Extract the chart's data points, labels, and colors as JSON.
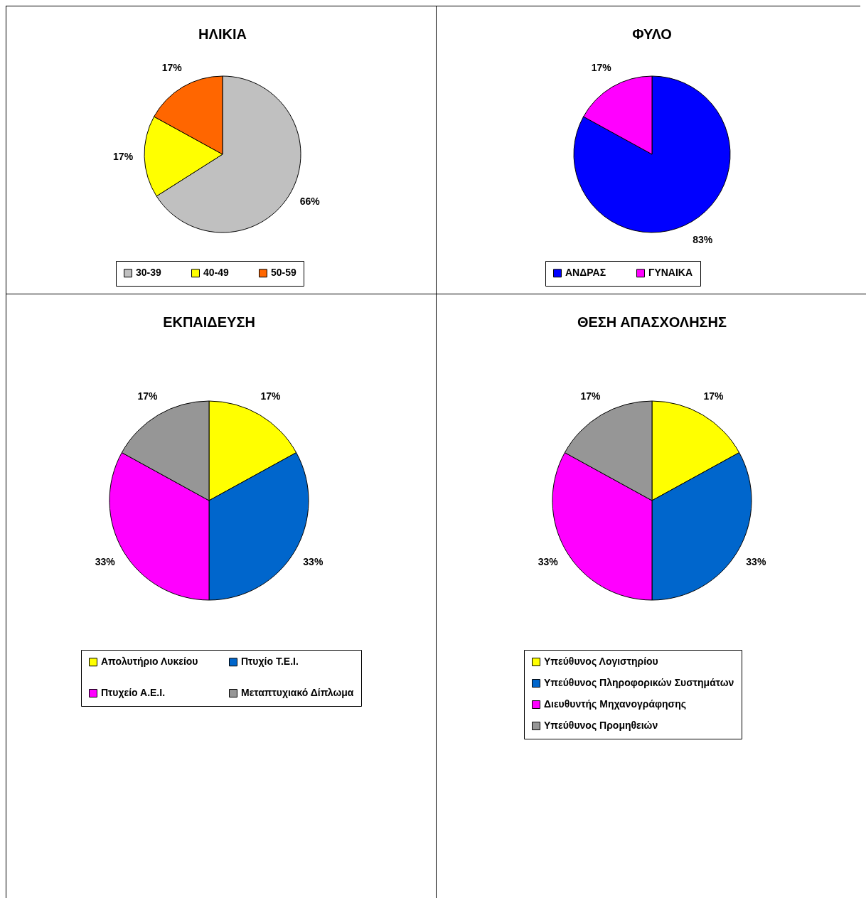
{
  "chart_data": [
    {
      "type": "pie",
      "title": "ΗΛΙΚΙΑ",
      "categories": [
        "30-39",
        "40-49",
        "50-59"
      ],
      "values": [
        66,
        17,
        17
      ],
      "value_labels": [
        "66%",
        "17%",
        "17%"
      ],
      "colors": [
        "#c0c0c0",
        "#ffff00",
        "#ff6600"
      ],
      "legend": "bottom"
    },
    {
      "type": "pie",
      "title": "ΦΥΛΟ",
      "categories": [
        "ΑΝΔΡΑΣ",
        "ΓΥΝΑΙΚΑ"
      ],
      "values": [
        83,
        17
      ],
      "value_labels": [
        "83%",
        "17%"
      ],
      "colors": [
        "#0000ff",
        "#ff00ff"
      ],
      "legend": "bottom"
    },
    {
      "type": "pie",
      "title": "ΕΚΠΑΙΔΕΥΣΗ",
      "categories": [
        "Απολυτήριο Λυκείου",
        "Πτυχίο Τ.Ε.Ι.",
        "Πτυχείο Α.Ε.Ι.",
        "Μεταπτυχιακό Δίπλωμα"
      ],
      "values": [
        17,
        33,
        33,
        17
      ],
      "value_labels": [
        "17%",
        "33%",
        "33%",
        "17%"
      ],
      "colors": [
        "#ffff00",
        "#0066cc",
        "#ff00ff",
        "#969696"
      ],
      "legend": "bottom"
    },
    {
      "type": "pie",
      "title": "ΘΕΣΗ ΑΠΑΣΧΟΛΗΣΗΣ",
      "categories": [
        "Υπεύθυνος Λογιστηρίου",
        "Υπεύθυνος Πληροφορικών Συστημάτων",
        "Διευθυντής Μηχανογράφησης",
        "Υπεύθυνος Προμηθειών"
      ],
      "values": [
        17,
        33,
        33,
        17
      ],
      "value_labels": [
        "17%",
        "33%",
        "33%",
        "17%"
      ],
      "colors": [
        "#ffff00",
        "#0066cc",
        "#ff00ff",
        "#969696"
      ],
      "legend": "bottom"
    }
  ]
}
